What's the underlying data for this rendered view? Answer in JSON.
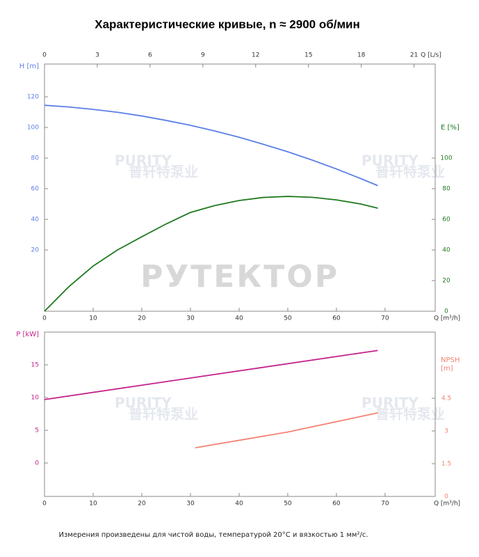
{
  "chart_data": [
    {
      "type": "line",
      "title": "Характеристические кривые, n ≈ 2900 об/мин",
      "watermarks": [
        "PURITY",
        "普轩特泵业",
        "PURITY",
        "普轩特泵业",
        "РУТЕКТОР"
      ],
      "xlabel": "Q [m³/h]",
      "x2label": "Q [L/s]",
      "ylabel": "H [m]",
      "y2label": [
        "E [%]"
      ],
      "xlim": [
        0,
        80.3
      ],
      "xticks": [
        0,
        10,
        20,
        30,
        40,
        50,
        60,
        70
      ],
      "x2lim": [
        0,
        22.2
      ],
      "x2ticks": [
        0,
        3,
        6,
        9,
        12,
        15,
        18,
        21
      ],
      "ylim": [
        -20,
        141.4
      ],
      "yticks": [
        20,
        40,
        60,
        80,
        100,
        120
      ],
      "y2lim": [
        0,
        161.4
      ],
      "y2ticks": [
        0,
        20,
        40,
        60,
        80,
        100
      ],
      "x": [
        0,
        5,
        10,
        15,
        20,
        25,
        30,
        35,
        40,
        45,
        50,
        55,
        60,
        65,
        68.5
      ],
      "series": [
        {
          "name": "H",
          "color": "#5b7fe6",
          "axis": "y",
          "values": [
            114.5,
            113.4,
            111.8,
            109.9,
            107.5,
            104.6,
            101.4,
            97.7,
            93.6,
            89.0,
            84.1,
            78.7,
            72.9,
            66.6,
            62.0
          ]
        },
        {
          "name": "E",
          "color": "#1f7a1f",
          "axis": "y2",
          "values": [
            0,
            16,
            29.5,
            40,
            48.6,
            57,
            64.5,
            69,
            72.3,
            74.3,
            75,
            74.4,
            72.7,
            70,
            67.3
          ]
        }
      ]
    },
    {
      "type": "line",
      "watermarks": [
        "PURITY",
        "普轩特泵业",
        "PURITY",
        "普轩特泵业"
      ],
      "xlabel": "Q [m³/h]",
      "ylabel": "P [kW]",
      "y2label": [
        "NPSH",
        "[m]"
      ],
      "footnote": "Измерения произведены для чистой воды, температурой 20°C и вязкостью 1 мм²/с.",
      "xlim": [
        0,
        80.3
      ],
      "xticks": [
        0,
        10,
        20,
        30,
        40,
        50,
        60,
        70
      ],
      "ylim": [
        -5.1,
        20
      ],
      "yticks": [
        0,
        5,
        10,
        15
      ],
      "y2lim": [
        0,
        7.53
      ],
      "y2ticks": [
        0,
        1.5,
        3,
        4.5
      ],
      "series": [
        {
          "name": "P",
          "color": "#c4228c",
          "axis": "y",
          "x": [
            0,
            68.5
          ],
          "values": [
            9.7,
            17.2
          ]
        },
        {
          "name": "NPSH",
          "color": "#f28272",
          "axis": "y2",
          "x": [
            31,
            50,
            68.5
          ],
          "values": [
            2.23,
            2.95,
            3.83
          ]
        }
      ]
    }
  ]
}
